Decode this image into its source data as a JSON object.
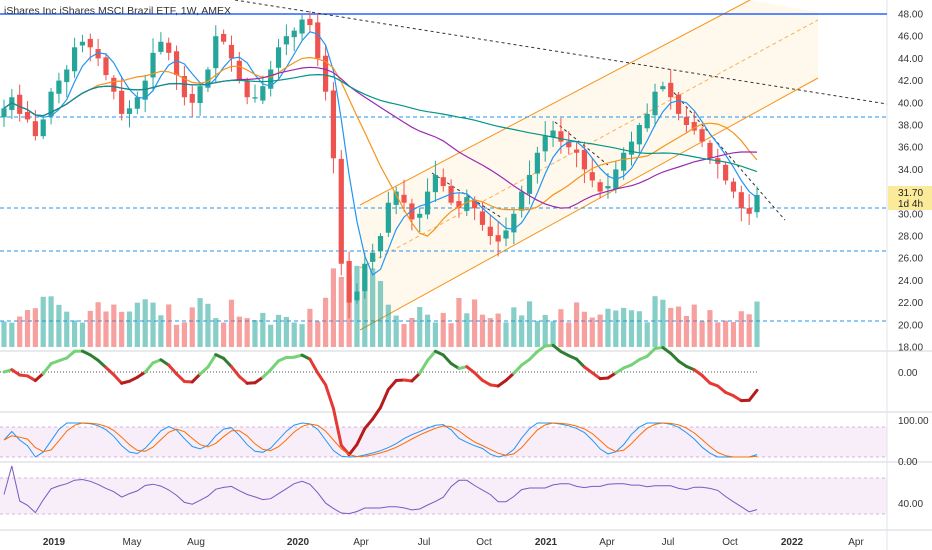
{
  "chart_data": {
    "type": "candlestick",
    "title": "iShares Inc iShares MSCI Brazil ETF, 1W, AMEX",
    "x_axis_labels": [
      "2019",
      "May",
      "Aug",
      "2020",
      "Apr",
      "Jul",
      "Oct",
      "2021",
      "Apr",
      "Jul",
      "Oct",
      "2022",
      "Apr"
    ],
    "price_ticks": [
      "48.00",
      "46.00",
      "44.00",
      "42.00",
      "40.00",
      "38.00",
      "36.00",
      "34.00",
      "32.00",
      "30.00",
      "28.00",
      "26.00",
      "24.00",
      "22.00",
      "20.00",
      "18.00"
    ],
    "price_range": [
      18,
      49
    ],
    "oscillator_ticks": [
      "0.00"
    ],
    "stoch_ticks": [
      "100.00",
      "0.00"
    ],
    "rsi_ticks": [
      "40.00"
    ],
    "last_price": "31.70",
    "countdown": "1d 4h",
    "colors": {
      "up": "#26a69a",
      "down": "#ef5350",
      "horizontal_line": "#2962ff",
      "ma_fast": "#2196f3",
      "ma_mid": "#f7931a",
      "ma_slow": "#9c27b0",
      "ma_long": "#009688"
    },
    "series": [
      {
        "name": "price",
        "values": [
          39.5,
          40.5,
          39,
          38.5,
          37,
          38.5,
          41,
          42,
          43,
          45,
          45.5,
          45,
          44,
          42.5,
          41,
          39,
          39.5,
          40.5,
          42,
          44.5,
          45.5,
          44.5,
          42.5,
          40.5,
          40,
          41.5,
          43,
          46,
          45.5,
          44,
          42,
          40.5,
          40.5,
          41.5,
          43,
          45,
          46,
          46.5,
          47.5,
          47,
          44,
          41,
          35,
          25.5,
          22,
          23,
          25.5,
          26.5,
          28,
          31,
          32,
          31,
          29.5,
          30,
          32,
          33.5,
          32.5,
          31,
          30.5,
          31.5,
          30.5,
          29,
          28,
          27.5,
          28.5,
          30,
          32,
          33.5,
          35.5,
          37,
          37.5,
          36.5,
          36,
          35.5,
          34,
          33,
          32,
          32.5,
          34,
          35.5,
          36.5,
          38,
          39,
          41,
          41.5,
          40.5,
          39,
          38,
          37.5,
          36.5,
          35,
          34.5,
          33,
          32,
          30.5,
          30,
          31.7
        ]
      }
    ]
  }
}
